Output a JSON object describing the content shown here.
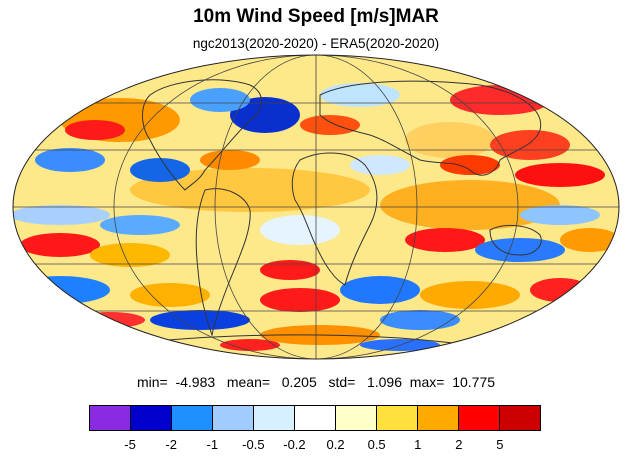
{
  "figure": {
    "title": "10m Wind Speed [m/s]MAR",
    "subtitle": "ngc2013(2020-2020) - ERA5(2020-2020)"
  },
  "map": {
    "projection": "Mollweide",
    "colors": {
      "ocean_base": "#fde88a",
      "coast": "#333333",
      "grid": "#333333"
    }
  },
  "stats": {
    "min_label": "min=",
    "min": "-4.983",
    "mean_label": "mean=",
    "mean": "0.205",
    "std_label": "std=",
    "std": "1.096",
    "max_label": "max=",
    "max": "10.775"
  },
  "colorbar": {
    "colors": [
      "#8a2be2",
      "#0000cd",
      "#1e90ff",
      "#a0ccff",
      "#d7f0ff",
      "#ffffff",
      "#ffffc8",
      "#ffe03c",
      "#ffaa00",
      "#ff0000",
      "#cc0000"
    ],
    "labels": [
      "-5",
      "-2",
      "-1",
      "-0.5",
      "-0.2",
      "0.2",
      "0.5",
      "1",
      "2",
      "5"
    ]
  }
}
